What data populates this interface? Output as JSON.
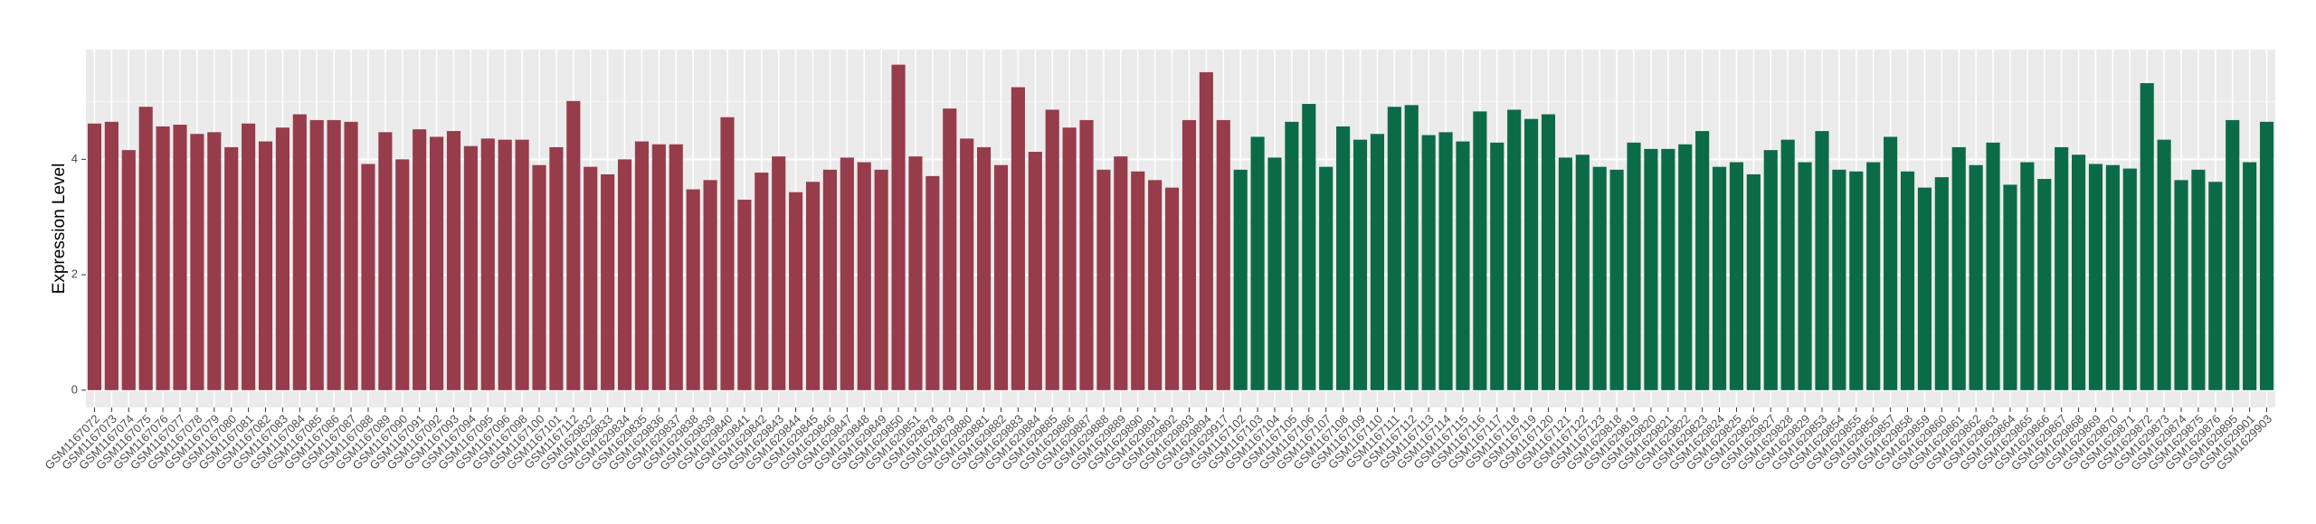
{
  "chart_data": {
    "type": "bar",
    "y_label": "Expression Level",
    "ylim": [
      -0.3,
      5.9
    ],
    "yticks": [
      0,
      2,
      4
    ],
    "grid": true,
    "series": [
      {
        "color": "#963c4b",
        "categories": [
          "GSM1167072",
          "GSM1167073",
          "GSM1167074",
          "GSM1167075",
          "GSM1167076",
          "GSM1167077",
          "GSM1167078",
          "GSM1167079",
          "GSM1167080",
          "GSM1167081",
          "GSM1167082",
          "GSM1167083",
          "GSM1167084",
          "GSM1167085",
          "GSM1167086",
          "GSM1167087",
          "GSM1167088",
          "GSM1167089",
          "GSM1167090",
          "GSM1167091",
          "GSM1167092",
          "GSM1167093",
          "GSM1167094",
          "GSM1167095",
          "GSM1167096",
          "GSM1167098",
          "GSM1167100",
          "GSM1167101",
          "GSM1167112",
          "GSM1629832",
          "GSM1629833",
          "GSM1629834",
          "GSM1629835",
          "GSM1629836",
          "GSM1629837",
          "GSM1629838",
          "GSM1629839",
          "GSM1629840",
          "GSM1629841",
          "GSM1629842",
          "GSM1629843",
          "GSM1629844",
          "GSM1629845",
          "GSM1629846",
          "GSM1629847",
          "GSM1629848",
          "GSM1629849",
          "GSM1629850",
          "GSM1629851",
          "GSM1629878",
          "GSM1629879",
          "GSM1629880",
          "GSM1629881",
          "GSM1629882",
          "GSM1629883",
          "GSM1629884",
          "GSM1629885",
          "GSM1629886",
          "GSM1629887",
          "GSM1629888",
          "GSM1629889",
          "GSM1629890",
          "GSM1629891",
          "GSM1629892",
          "GSM1629893",
          "GSM1629894",
          "GSM1629917"
        ],
        "values": [
          4.62,
          4.65,
          4.16,
          4.91,
          4.57,
          4.6,
          4.44,
          4.47,
          4.21,
          4.62,
          4.31,
          4.55,
          4.78,
          4.68,
          4.68,
          4.65,
          3.92,
          4.47,
          4.0,
          4.52,
          4.39,
          4.49,
          4.23,
          4.36,
          4.34,
          4.34,
          3.9,
          4.21,
          5.01,
          3.87,
          3.74,
          4.0,
          4.31,
          4.26,
          4.26,
          3.48,
          3.64,
          4.73,
          3.3,
          3.77,
          4.05,
          3.43,
          3.61,
          3.82,
          4.03,
          3.95,
          3.82,
          5.64,
          4.05,
          3.71,
          4.88,
          4.36,
          4.21,
          3.9,
          5.25,
          4.13,
          4.86,
          4.55,
          4.68,
          3.82,
          4.05,
          3.79,
          3.64,
          3.51,
          4.68,
          5.51,
          4.68
        ]
      },
      {
        "color": "#0b6b48",
        "categories": [
          "GSM1167102",
          "GSM1167103",
          "GSM1167104",
          "GSM1167105",
          "GSM1167106",
          "GSM1167107",
          "GSM1167108",
          "GSM1167109",
          "GSM1167110",
          "GSM1167111",
          "GSM1167112",
          "GSM1167113",
          "GSM1167114",
          "GSM1167115",
          "GSM1167116",
          "GSM1167117",
          "GSM1167118",
          "GSM1167119",
          "GSM1167120",
          "GSM1167121",
          "GSM1167122",
          "GSM1167123",
          "GSM1629818",
          "GSM1629819",
          "GSM1629820",
          "GSM1629821",
          "GSM1629822",
          "GSM1629823",
          "GSM1629824",
          "GSM1629825",
          "GSM1629826",
          "GSM1629827",
          "GSM1629828",
          "GSM1629829",
          "GSM1629853",
          "GSM1629854",
          "GSM1629855",
          "GSM1629856",
          "GSM1629857",
          "GSM1629858",
          "GSM1629859",
          "GSM1629860",
          "GSM1629861",
          "GSM1629862",
          "GSM1629863",
          "GSM1629864",
          "GSM1629865",
          "GSM1629866",
          "GSM1629867",
          "GSM1629868",
          "GSM1629869",
          "GSM1629870",
          "GSM1629871",
          "GSM1629872",
          "GSM1629873",
          "GSM1629874",
          "GSM1629875",
          "GSM1629876",
          "GSM1629895",
          "GSM1629901",
          "GSM1629903"
        ],
        "values": [
          3.82,
          4.39,
          4.03,
          4.65,
          4.96,
          3.87,
          4.57,
          4.34,
          4.44,
          4.91,
          4.94,
          4.42,
          4.47,
          4.31,
          4.83,
          4.29,
          4.86,
          4.7,
          4.78,
          4.03,
          4.08,
          3.87,
          3.82,
          4.29,
          4.18,
          4.18,
          4.26,
          4.49,
          3.87,
          3.95,
          3.74,
          4.16,
          4.34,
          3.95,
          4.49,
          3.82,
          3.79,
          3.95,
          4.39,
          3.79,
          3.51,
          3.69,
          4.21,
          3.9,
          4.29,
          3.56,
          3.95,
          3.66,
          4.21,
          4.08,
          3.92,
          3.9,
          3.84,
          5.32,
          4.34,
          3.64,
          3.82,
          3.61,
          4.68,
          3.95,
          4.65
        ]
      }
    ]
  }
}
